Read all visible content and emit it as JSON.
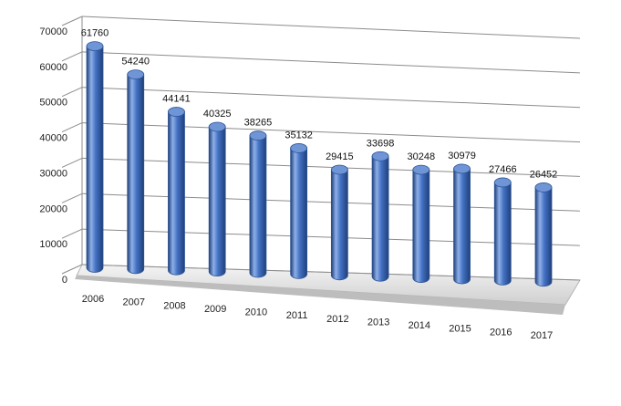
{
  "chart_data": {
    "type": "bar",
    "style": "3d-cylinder",
    "categories": [
      "2006",
      "2007",
      "2008",
      "2009",
      "2010",
      "2011",
      "2012",
      "2013",
      "2014",
      "2015",
      "2016",
      "2017"
    ],
    "values": [
      61760,
      54240,
      44141,
      40325,
      38265,
      35132,
      29415,
      33698,
      30248,
      30979,
      27466,
      26452
    ],
    "ylim": [
      0,
      70000
    ],
    "yticks": [
      0,
      10000,
      20000,
      30000,
      40000,
      50000,
      60000,
      70000
    ],
    "grid": true,
    "legend": "none",
    "title": "",
    "xlabel": "",
    "ylabel": "",
    "colors": {
      "bar": "#4472c4",
      "bar_dark": "#1f3f7a",
      "bar_light": "#8fb0e8",
      "grid": "#8c8c8c"
    }
  }
}
